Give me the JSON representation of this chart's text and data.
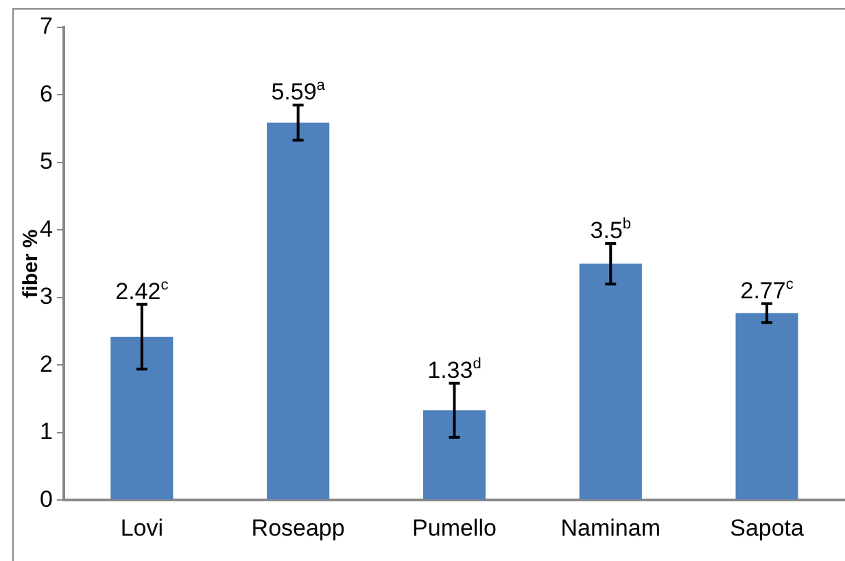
{
  "chart_data": {
    "type": "bar",
    "ylabel": "fiber %",
    "categories": [
      "Lovi",
      "Roseapp",
      "Pumello",
      "Naminam",
      "Sapota"
    ],
    "values": [
      2.42,
      5.59,
      1.33,
      3.5,
      2.77
    ],
    "errors": [
      0.48,
      0.26,
      0.4,
      0.3,
      0.14
    ],
    "value_labels": [
      "2.42$^{c}$",
      "5.59$^{a}$",
      "1.33$^{d}$",
      "3.5$^{b}$",
      "2.77$^{c}$"
    ],
    "color": "#4f81bd",
    "ylim": [
      0,
      7
    ],
    "yticks": [
      0,
      1,
      2,
      3,
      4,
      5,
      6,
      7
    ],
    "grid": false,
    "legend": false
  }
}
